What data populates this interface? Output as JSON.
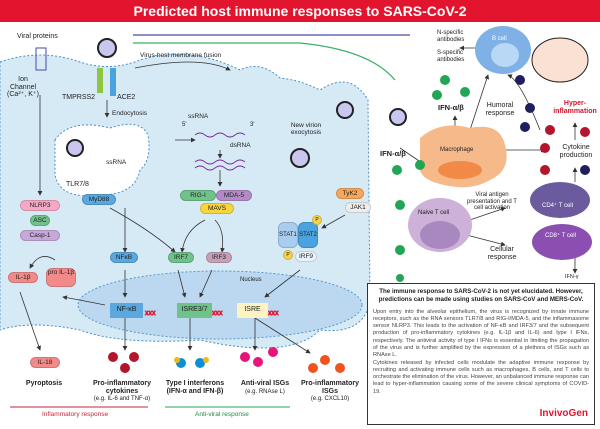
{
  "title": "Predicted host immune responses to SARS-CoV-2",
  "cell": {
    "viral_proteins": "Viral proteins",
    "ion_channel": "Ion Channel (Ca²⁺, K⁺)",
    "tmprss2": "TMPRSS2",
    "ace2": "ACE2",
    "fusion": "Virus-host membrane fusion",
    "endocytosis": "Endocytosis",
    "ssrna_endo": "ssRNA",
    "tlr78": "TLR7/8",
    "myd88": "MyD88",
    "ssrna": "ssRNA",
    "dsrna": "dsRNA",
    "five": "5'",
    "three": "3'",
    "rigi": "RIG-I",
    "mda5": "MDA-5",
    "mavs": "MAVS",
    "exocytosis": "New virion exocytosis",
    "tyk2": "TyK2",
    "jak1": "JAK1",
    "stat1": "STAT1",
    "stat2": "STAT2",
    "irf9": "IRF9",
    "p": "P",
    "nlrp3": "NLRP3",
    "asc": "ASC",
    "casp1": "Casp-1",
    "nfkb": "NFκB",
    "irf7": "IRF7",
    "irf3": "IRF3",
    "il1b": "IL-1β",
    "pro_il1b": "pro IL-1β",
    "nucleus": "Nucleus",
    "nfkb_nuc": "NF-κB",
    "isre37": "ISRE3/7",
    "isre": "ISRE",
    "il18": "IL-18",
    "ifn_left": "IFN-α/β"
  },
  "outputs": [
    {
      "title": "Pyroptosis",
      "sub": ""
    },
    {
      "title": "Pro-inflammatory cytokines",
      "sub": "(e.g. IL-6 and TNF-α)"
    },
    {
      "title": "Type I interferons",
      "sub": "(IFN-α and IFN-β)"
    },
    {
      "title": "Anti-viral ISGs",
      "sub": "(e.g. RNAse L)"
    },
    {
      "title": "Pro-inflammatory ISGs",
      "sub": "(e.g. CXCL10)"
    }
  ],
  "responses": {
    "inflammatory": "Inflammatory response",
    "antiviral": "Anti-viral response"
  },
  "right": {
    "n_ab": "N-specific antibodies",
    "s_ab": "S-specific antibodies",
    "bcell": "B cell",
    "ifn": "IFN-α/β",
    "humoral": "Humoral response",
    "hyper": "Hyper-inflammation",
    "macrophage": "Macrophage",
    "cytokine": "Cytokine production",
    "antigen": "Viral antigen presentation and T cell activation",
    "cd4": "CD4⁺ T cell",
    "naive": "Naive T cell",
    "cd8": "CD8⁺ T cell",
    "cellular": "Cellular response",
    "ifng": "IFN-γ"
  },
  "info": {
    "lead": "The immune response to SARS-CoV-2 is not yet elucidated. However, predictions can be made using studies on SARS-CoV and MERS-CoV.",
    "p1": "Upon entry into the alveolar epithelium, the virus is recognized by innate immune receptors, such as the RNA sensors TLR7/8 and RIG-I/MDA-5, and the inflammasome sensor NLRP3. This leads to the activation of NF-κB and IRF3/7 and the subsequent production of pro-inflammatory cytokines (e.g. IL-1β and IL-6) and type I IFNs, respectively. The antiviral activity of type I IFNs is essential in limiting the propagation of the virus and is further amplified by the expression of a plethora of ISGs such as RNAse L.",
    "p2": "Cytokines released by infected cells modulate the adaptive immune response by recruiting and activating immune cells such as macrophages, B cells, and T cells to orchestrate the elimination of the virus. However, an unbalanced immune response can lead to hyper-inflammation causing some of the severe clinical symptoms of COVID-19.",
    "logo": "InvivoGen"
  },
  "colors": {
    "title_bar": "#e3142d",
    "cell": "#d6eaf6",
    "macrophage": "#f6b98a",
    "cd4": "#6b5a9e",
    "cd8": "#8a4fb0",
    "naive": "#cdb1d8",
    "bcell": "#7fb1e6",
    "ifn": "#23a556",
    "cytokine": "#b3162c"
  }
}
